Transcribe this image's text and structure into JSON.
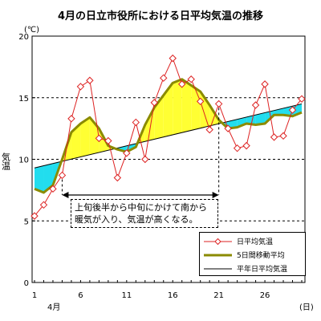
{
  "chart_data": {
    "type": "line",
    "title": "4月の日立市役所における日平均気温の推移",
    "unit_label": "(℃)",
    "ylabel": "気温",
    "xlabel_month": "4月",
    "xlabel_unit": "(日)",
    "ylim": [
      0,
      20
    ],
    "xlim": [
      1,
      30
    ],
    "y_ticks": [
      "0",
      "5",
      "10",
      "15",
      "20"
    ],
    "x_ticks": [
      {
        "day": 1,
        "label": "1"
      },
      {
        "day": 6,
        "label": "6"
      },
      {
        "day": 11,
        "label": "11"
      },
      {
        "day": 16,
        "label": "16"
      },
      {
        "day": 21,
        "label": "21"
      },
      {
        "day": 26,
        "label": "26"
      }
    ],
    "grid": "dashed horizontal at 5, 10, 15",
    "series": [
      {
        "name": "日平均気温",
        "color": "#dd2222",
        "marker": "diamond",
        "x": [
          1,
          2,
          3,
          4,
          5,
          6,
          7,
          8,
          9,
          10,
          11,
          12,
          13,
          14,
          15,
          16,
          17,
          18,
          19,
          20,
          21,
          22,
          23,
          24,
          25,
          26,
          27,
          28,
          29,
          30
        ],
        "values": [
          5.4,
          6.3,
          7.6,
          8.7,
          13.3,
          15.9,
          16.4,
          11.7,
          11.5,
          8.5,
          10.5,
          13.0,
          10.0,
          14.6,
          16.6,
          18.2,
          16.1,
          16.5,
          14.7,
          12.4,
          14.5,
          12.5,
          10.9,
          11.1,
          14.4,
          16.1,
          11.8,
          11.9,
          14.0,
          14.9
        ]
      },
      {
        "name": "5日間移動平均",
        "color": "#8b8b00",
        "x": [
          1,
          2,
          3,
          4,
          5,
          6,
          7,
          8,
          9,
          10,
          11,
          12,
          13,
          14,
          15,
          16,
          17,
          18,
          19,
          20,
          21,
          22,
          23,
          24,
          25,
          26,
          27,
          28,
          29,
          30
        ],
        "values": [
          7.6,
          7.3,
          7.9,
          10.0,
          12.2,
          12.9,
          13.4,
          12.5,
          11.1,
          10.8,
          10.6,
          11.0,
          12.8,
          14.2,
          15.2,
          16.2,
          16.5,
          16.0,
          15.5,
          14.4,
          13.2,
          12.5,
          12.6,
          12.9,
          12.8,
          12.9,
          13.6,
          13.6,
          13.5,
          13.8
        ]
      },
      {
        "name": "平年日平均気温",
        "color": "#000000",
        "x": [
          1,
          30
        ],
        "values": [
          9.3,
          14.5
        ]
      }
    ],
    "fill_colors": {
      "above": "#ffff33",
      "below": "#22ddee"
    },
    "annotation": {
      "text_line1": "上旬後半から中旬にかけて南から",
      "text_line2": "暖気が入り、気温が高くなる。",
      "from_day": 4,
      "to_day": 21
    },
    "legend_position": "bottom-right"
  }
}
